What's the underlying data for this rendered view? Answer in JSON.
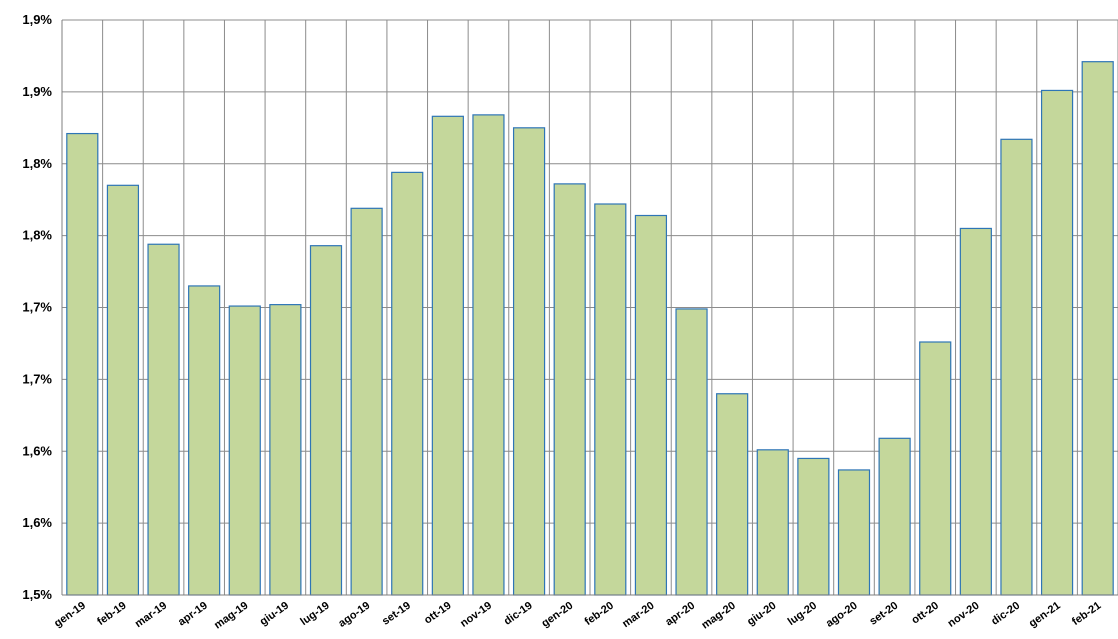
{
  "chart_data": {
    "type": "bar",
    "title": "",
    "xlabel": "",
    "ylabel": "",
    "categories": [
      "gen-19",
      "feb-19",
      "mar-19",
      "apr-19",
      "mag-19",
      "giu-19",
      "lug-19",
      "ago-19",
      "set-19",
      "ott-19",
      "nov-19",
      "dic-19",
      "gen-20",
      "feb-20",
      "mar-20",
      "apr-20",
      "mag-20",
      "giu-20",
      "lug-20",
      "ago-20",
      "set-20",
      "ott-20",
      "nov-20",
      "dic-20",
      "gen-21",
      "feb-21"
    ],
    "values": [
      1.821,
      1.785,
      1.744,
      1.715,
      1.701,
      1.702,
      1.743,
      1.769,
      1.794,
      1.833,
      1.834,
      1.825,
      1.786,
      1.772,
      1.764,
      1.699,
      1.64,
      1.601,
      1.595,
      1.587,
      1.609,
      1.676,
      1.755,
      1.817,
      1.851,
      1.871
    ],
    "ylim": [
      1.5,
      1.9
    ],
    "yticks": [
      1.5,
      1.55,
      1.6,
      1.65,
      1.7,
      1.75,
      1.8,
      1.85,
      1.9
    ],
    "ytick_labels": [
      "1,5%",
      "1,6%",
      "1,6%",
      "1,7%",
      "1,7%",
      "1,8%",
      "1,8%",
      "1,9%",
      "1,9%"
    ],
    "grid": true,
    "colors": {
      "bar_fill": "#c4d79b",
      "bar_stroke": "#2e75b6",
      "grid": "#8c8c8c"
    }
  }
}
